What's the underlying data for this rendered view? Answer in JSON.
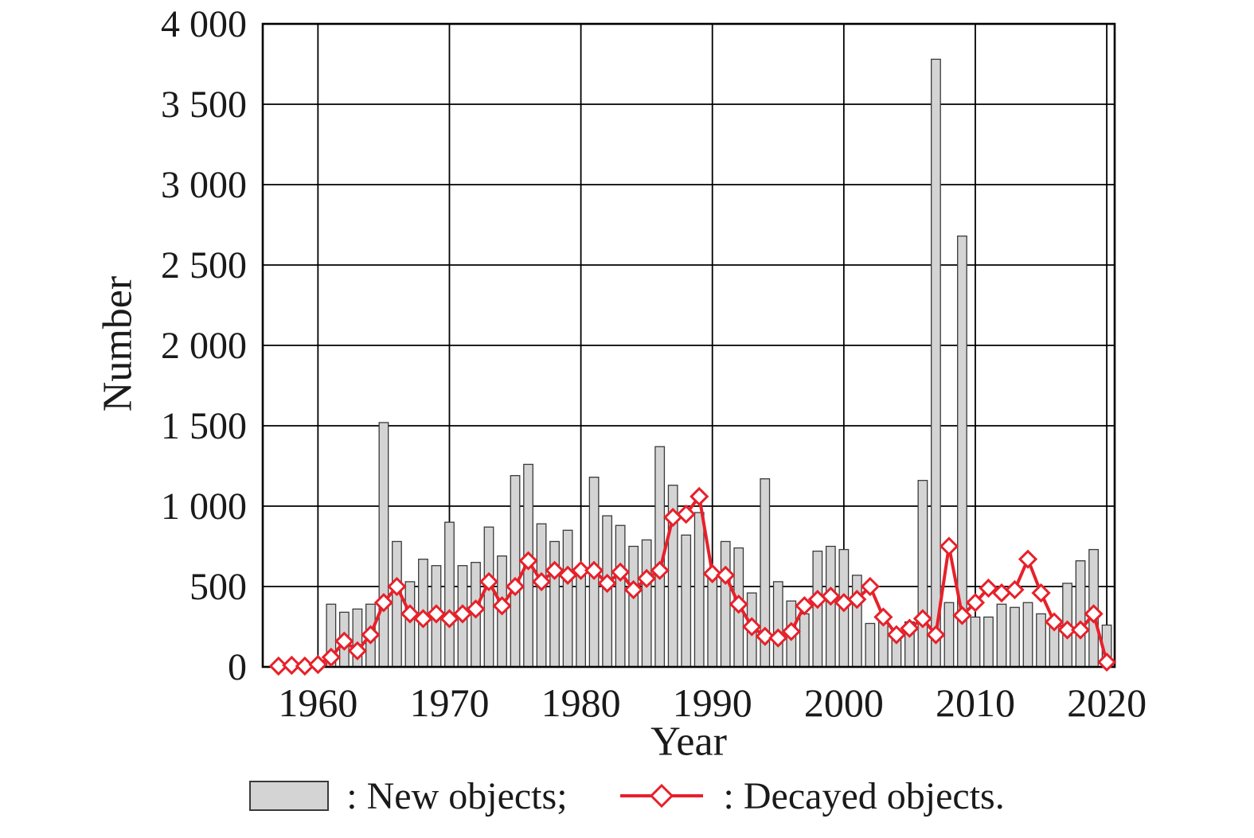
{
  "chart_data": {
    "type": "bar+line",
    "title": "",
    "xlabel": "Year",
    "ylabel": "Number",
    "ylim": [
      0,
      4000
    ],
    "xlim": [
      1955.8,
      2020.6
    ],
    "y_tick_step": 500,
    "y_tick_labels": [
      "0",
      "500",
      "1 000",
      "1 500",
      "2 000",
      "2 500",
      "3 000",
      "3 500",
      "4 000"
    ],
    "x_ticks": [
      1960,
      1970,
      1980,
      1990,
      2000,
      2010,
      2020
    ],
    "grid": true,
    "legend_position": "bottom",
    "years": [
      1957,
      1958,
      1959,
      1960,
      1961,
      1962,
      1963,
      1964,
      1965,
      1966,
      1967,
      1968,
      1969,
      1970,
      1971,
      1972,
      1973,
      1974,
      1975,
      1976,
      1977,
      1978,
      1979,
      1980,
      1981,
      1982,
      1983,
      1984,
      1985,
      1986,
      1987,
      1988,
      1989,
      1990,
      1991,
      1992,
      1993,
      1994,
      1995,
      1996,
      1997,
      1998,
      1999,
      2000,
      2001,
      2002,
      2003,
      2004,
      2005,
      2006,
      2007,
      2008,
      2009,
      2010,
      2011,
      2012,
      2013,
      2014,
      2015,
      2016,
      2017,
      2018,
      2019,
      2020
    ],
    "series": [
      {
        "name": "New objects",
        "type": "bar",
        "values": [
          8,
          15,
          20,
          40,
          390,
          340,
          360,
          390,
          1520,
          780,
          530,
          670,
          630,
          900,
          630,
          650,
          870,
          690,
          1190,
          1260,
          890,
          780,
          850,
          610,
          1180,
          940,
          880,
          750,
          790,
          1370,
          1130,
          820,
          960,
          600,
          780,
          740,
          460,
          1170,
          530,
          410,
          330,
          720,
          750,
          730,
          570,
          270,
          320,
          200,
          280,
          1160,
          3780,
          400,
          2680,
          310,
          310,
          390,
          370,
          400,
          330,
          280,
          520,
          660,
          730,
          260
        ]
      },
      {
        "name": "Decayed objects",
        "type": "line",
        "marker": "diamond",
        "values": [
          5,
          10,
          5,
          15,
          60,
          160,
          100,
          200,
          400,
          500,
          330,
          300,
          330,
          300,
          330,
          360,
          530,
          380,
          500,
          660,
          530,
          600,
          570,
          600,
          600,
          520,
          590,
          480,
          550,
          600,
          930,
          950,
          1060,
          580,
          570,
          390,
          250,
          190,
          180,
          220,
          380,
          420,
          440,
          400,
          420,
          500,
          310,
          200,
          240,
          300,
          200,
          750,
          320,
          400,
          490,
          460,
          480,
          670,
          460,
          280,
          230,
          230,
          330,
          30
        ]
      }
    ]
  },
  "labels": {
    "ylabel": "Number",
    "xlabel": "Year",
    "legend_new": ": New objects;",
    "legend_decayed": ": Decayed objects."
  },
  "colors": {
    "background": "#ffffff",
    "bar_fill": "#d4d4d4",
    "bar_stroke": "#3a3a3a",
    "line": "#e8202a",
    "marker_fill": "#ffffff",
    "grid": "#000000",
    "text": "#1a1a1a"
  }
}
